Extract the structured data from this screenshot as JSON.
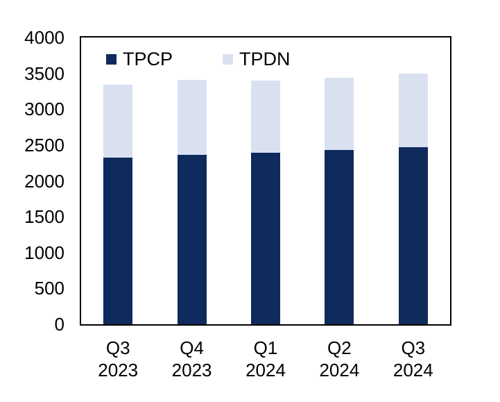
{
  "chart_data": {
    "type": "bar",
    "stacked": true,
    "title": "",
    "xlabel": "",
    "ylabel": "",
    "categories": [
      "Q3 2023",
      "Q4 2023",
      "Q1 2024",
      "Q2 2024",
      "Q3 2024"
    ],
    "category_lines": [
      [
        "Q3",
        "2023"
      ],
      [
        "Q4",
        "2023"
      ],
      [
        "Q1",
        "2024"
      ],
      [
        "Q2",
        "2024"
      ],
      [
        "Q3",
        "2024"
      ]
    ],
    "series": [
      {
        "name": "TPCP",
        "color": "#0F2A5C",
        "values": [
          2320,
          2360,
          2390,
          2430,
          2470
        ]
      },
      {
        "name": "TPDN",
        "color": "#D9E1F1",
        "values": [
          1020,
          1050,
          1010,
          1010,
          1030
        ]
      }
    ],
    "totals": [
      3340,
      3410,
      3400,
      3440,
      3500
    ],
    "ylim": [
      0,
      4000
    ],
    "ytick_step": 500,
    "yticks": [
      0,
      500,
      1000,
      1500,
      2000,
      2500,
      3000,
      3500,
      4000
    ],
    "grid": false,
    "legend_position": "top-left-inside",
    "axis_color": "#000000",
    "background_color": "#FFFFFF"
  }
}
